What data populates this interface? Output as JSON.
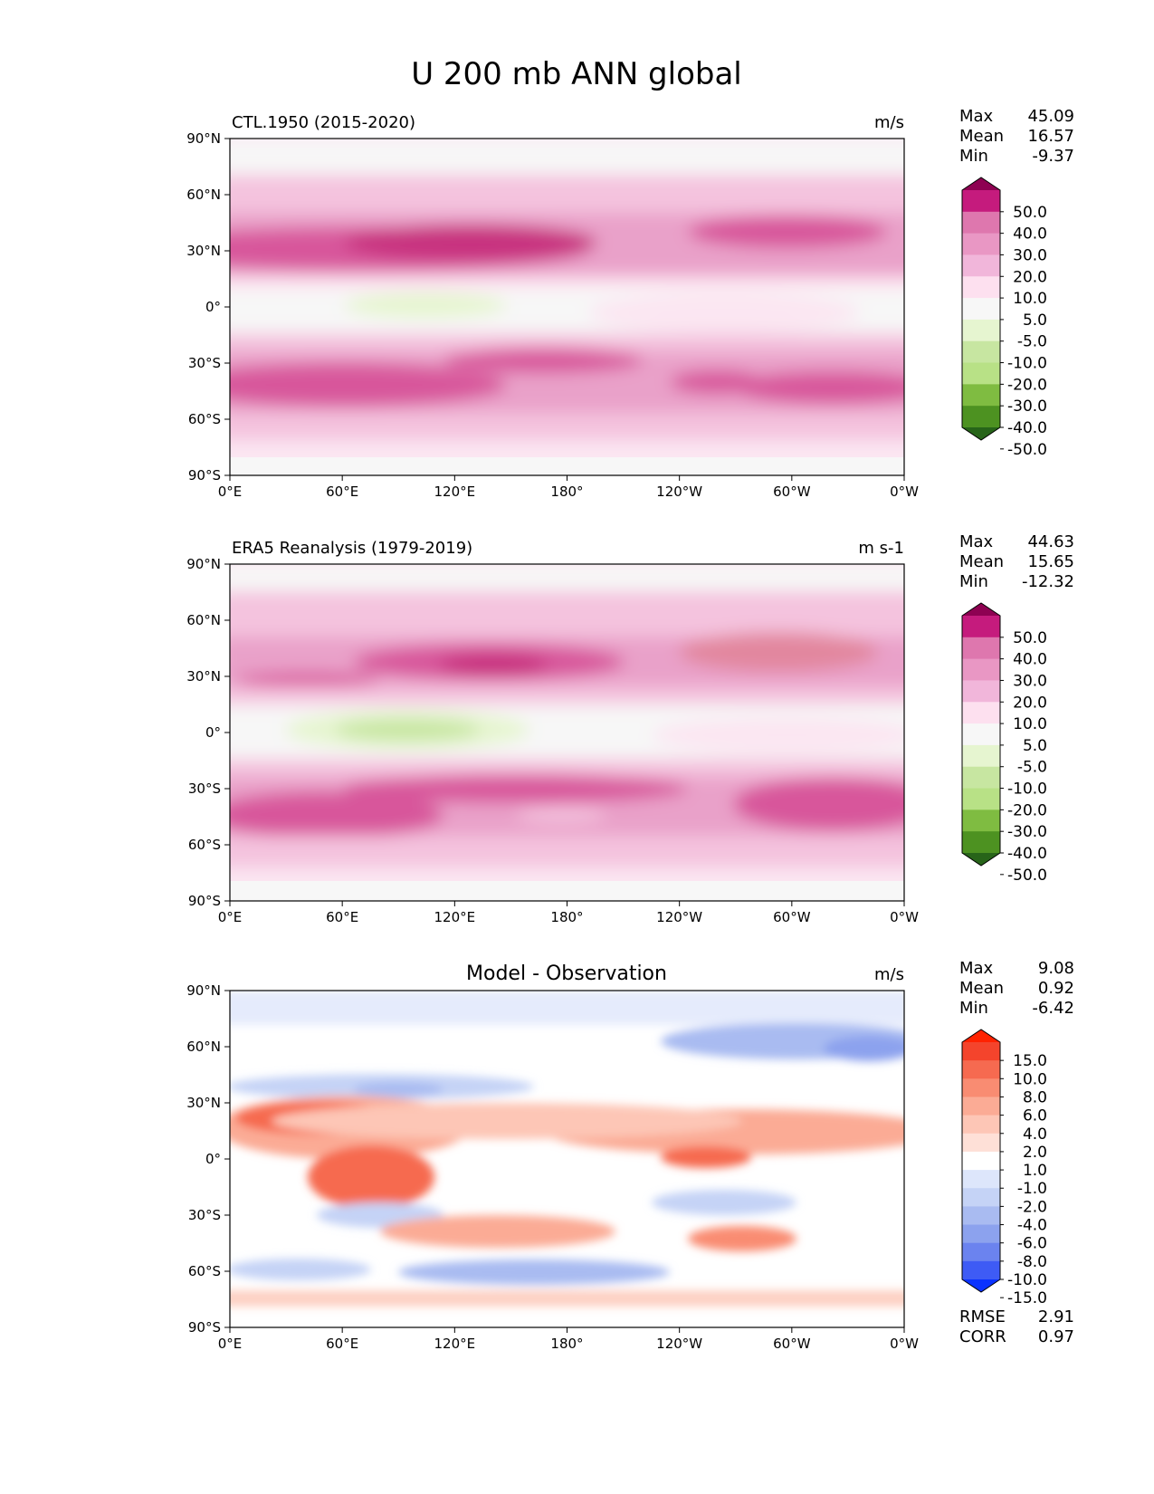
{
  "suptitle": "U 200 mb ANN global",
  "x_ticks": [
    "0°E",
    "60°E",
    "120°E",
    "180°",
    "120°W",
    "60°W",
    "0°W"
  ],
  "y_ticks": [
    "90°N",
    "60°N",
    "30°N",
    "0°",
    "30°S",
    "60°S",
    "90°S"
  ],
  "colorbars": {
    "fields": {
      "levels": [
        "50.0",
        "40.0",
        "30.0",
        "20.0",
        "10.0",
        "5.0",
        "-5.0",
        "-10.0",
        "-20.0",
        "-30.0",
        "-40.0",
        "-50.0"
      ],
      "colors": [
        "#8e0152",
        "#c51b7d",
        "#de77ae",
        "#e997c4",
        "#f1b6da",
        "#fde0ef",
        "#f7f7f7",
        "#e6f5d0",
        "#c7e6a1",
        "#b8e186",
        "#7fbc41",
        "#4d9221",
        "#276419"
      ]
    },
    "diff": {
      "levels": [
        "15.0",
        "10.0",
        "8.0",
        "6.0",
        "4.0",
        "2.0",
        "1.0",
        "-1.0",
        "-2.0",
        "-4.0",
        "-6.0",
        "-8.0",
        "-10.0",
        "-15.0"
      ],
      "colors": [
        "#ff2200",
        "#f4442c",
        "#f66a50",
        "#f98c72",
        "#fbab95",
        "#fdc6b6",
        "#fee0d7",
        "#ffffff",
        "#dde6fb",
        "#c5d3f6",
        "#a9bbf1",
        "#8ca2ee",
        "#6b83ef",
        "#3e5bf5",
        "#0a32ff"
      ]
    }
  },
  "panels": [
    {
      "title_left": "CTL.1950 (2015-2020)",
      "title_center": "",
      "units": "m/s",
      "stats": [
        {
          "label": "Max",
          "value": "45.09"
        },
        {
          "label": "Mean",
          "value": "16.57"
        },
        {
          "label": "Min",
          "value": "-9.37"
        }
      ],
      "extra_stats": []
    },
    {
      "title_left": "ERA5 Reanalysis (1979-2019)",
      "title_center": "",
      "units": "m s-1",
      "stats": [
        {
          "label": "Max",
          "value": "44.63"
        },
        {
          "label": "Mean",
          "value": "15.65"
        },
        {
          "label": "Min",
          "value": "-12.32"
        }
      ],
      "extra_stats": []
    },
    {
      "title_left": "",
      "title_center": "Model - Observation",
      "units": "m/s",
      "stats": [
        {
          "label": "Max",
          "value": "9.08"
        },
        {
          "label": "Mean",
          "value": "0.92"
        },
        {
          "label": "Min",
          "value": "-6.42"
        }
      ],
      "extra_stats": [
        {
          "label": "RMSE",
          "value": "2.91"
        },
        {
          "label": "CORR",
          "value": "0.97"
        }
      ]
    }
  ],
  "chart_data": {
    "type": "heatmap",
    "variable": "U 200 mb",
    "season": "ANN",
    "region": "global",
    "x_range_lon": [
      0,
      360
    ],
    "y_range_lat": [
      -90,
      90
    ],
    "panels": [
      {
        "name": "CTL.1950 (2015-2020)",
        "units": "m/s",
        "max": 45.09,
        "mean": 16.57,
        "min": -9.37
      },
      {
        "name": "ERA5 Reanalysis (1979-2019)",
        "units": "m s-1",
        "max": 44.63,
        "mean": 15.65,
        "min": -12.32
      },
      {
        "name": "Model - Observation",
        "units": "m/s",
        "max": 9.08,
        "mean": 0.92,
        "min": -6.42,
        "rmse": 2.91,
        "corr": 0.97
      }
    ]
  }
}
